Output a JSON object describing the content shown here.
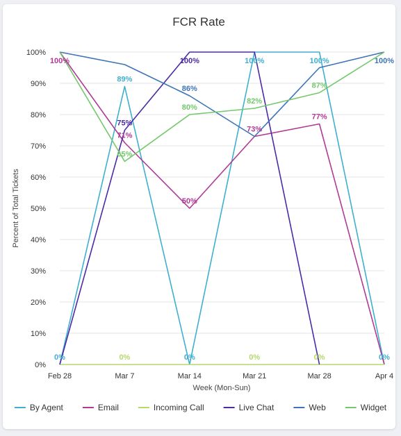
{
  "chart_data": {
    "type": "line",
    "title": "FCR Rate",
    "xlabel": "Week (Mon-Sun)",
    "ylabel": "Percent of Total Tickets",
    "categories": [
      "Feb 28",
      "Mar 7",
      "Mar 14",
      "Mar 21",
      "Mar 28",
      "Apr 4"
    ],
    "ylim": [
      0,
      100
    ],
    "yticks": [
      "0%",
      "10%",
      "20%",
      "30%",
      "40%",
      "50%",
      "60%",
      "70%",
      "80%",
      "90%",
      "100%"
    ],
    "legend_position": "bottom",
    "series": [
      {
        "name": "By Agent",
        "color": "#3fafd0",
        "values": [
          0,
          89,
          0,
          100,
          100,
          0
        ],
        "labels": [
          "0%",
          "89%",
          "0%",
          "100%",
          "100%",
          "0%"
        ]
      },
      {
        "name": "Email",
        "color": "#b03a96",
        "values": [
          100,
          71,
          50,
          73,
          77,
          0
        ],
        "labels": [
          "100%",
          "71%",
          "50%",
          "73%",
          "77%",
          ""
        ]
      },
      {
        "name": "Incoming Call",
        "color": "#b5d96b",
        "values": [
          0,
          0,
          0,
          0,
          0,
          0
        ],
        "labels": [
          "",
          "0%",
          "",
          "0%",
          "0%",
          ""
        ]
      },
      {
        "name": "Live Chat",
        "color": "#4b2aa6",
        "values": [
          0,
          75,
          100,
          100,
          0,
          null
        ],
        "labels": [
          "",
          "75%",
          "100%",
          "",
          "",
          ""
        ]
      },
      {
        "name": "Web",
        "color": "#3d74b8",
        "values": [
          100,
          96,
          86,
          73,
          95,
          100
        ],
        "labels": [
          "",
          "",
          "86%",
          "",
          "",
          "100%"
        ]
      },
      {
        "name": "Widget",
        "color": "#72c86a",
        "values": [
          100,
          65,
          80,
          82,
          87,
          100
        ],
        "labels": [
          "",
          "65%",
          "80%",
          "82%",
          "87%",
          ""
        ]
      }
    ]
  }
}
